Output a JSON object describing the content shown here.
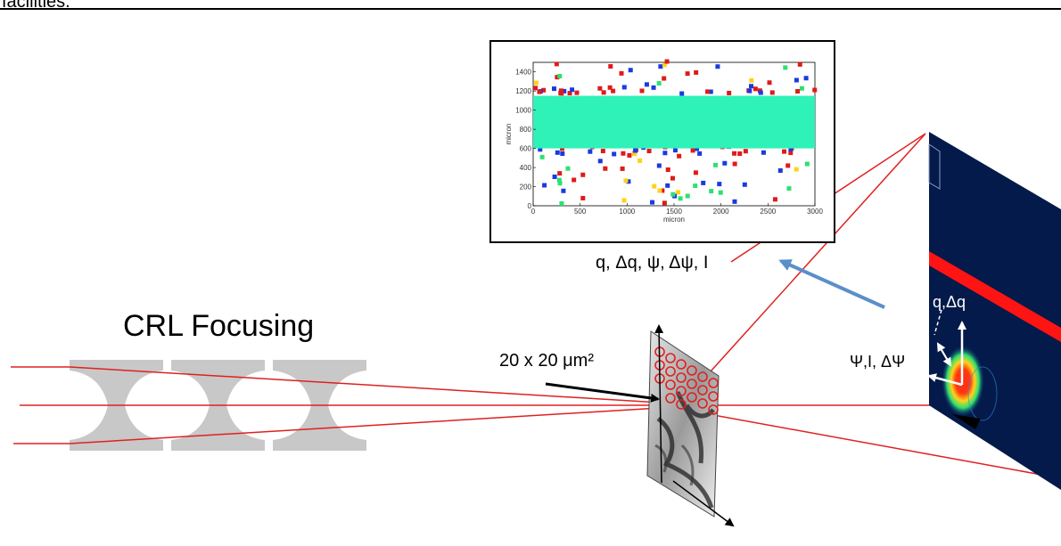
{
  "header": {
    "text": "facilities."
  },
  "labels": {
    "crl_focusing": "CRL Focusing",
    "beam_size": "20 x 20 μm²",
    "params": "q, Δq, ψ, Δψ, I",
    "q_dq": "q,Δq",
    "psi_labels": "Ψ,I, ΔΨ"
  },
  "chart_data": {
    "type": "heatmap",
    "xlabel": "micron",
    "ylabel": "micron",
    "xlim": [
      0,
      3000
    ],
    "ylim": [
      0,
      1500
    ],
    "x_ticks": [
      0,
      500,
      1000,
      1500,
      2000,
      2500,
      3000
    ],
    "y_ticks": [
      0,
      200,
      400,
      600,
      800,
      1000,
      1200,
      1400
    ],
    "band": {
      "y_low": 600,
      "y_high": 1150,
      "color": "#2ef2b8"
    }
  },
  "colors": {
    "beam": "#e02020",
    "lens": "#c8c8c8",
    "detector_bg": "#041a4a",
    "arrow_blue": "#5b8fc8"
  },
  "icons": [
    "crl-lens-icon",
    "sample-film-icon",
    "detector-screen-icon"
  ]
}
